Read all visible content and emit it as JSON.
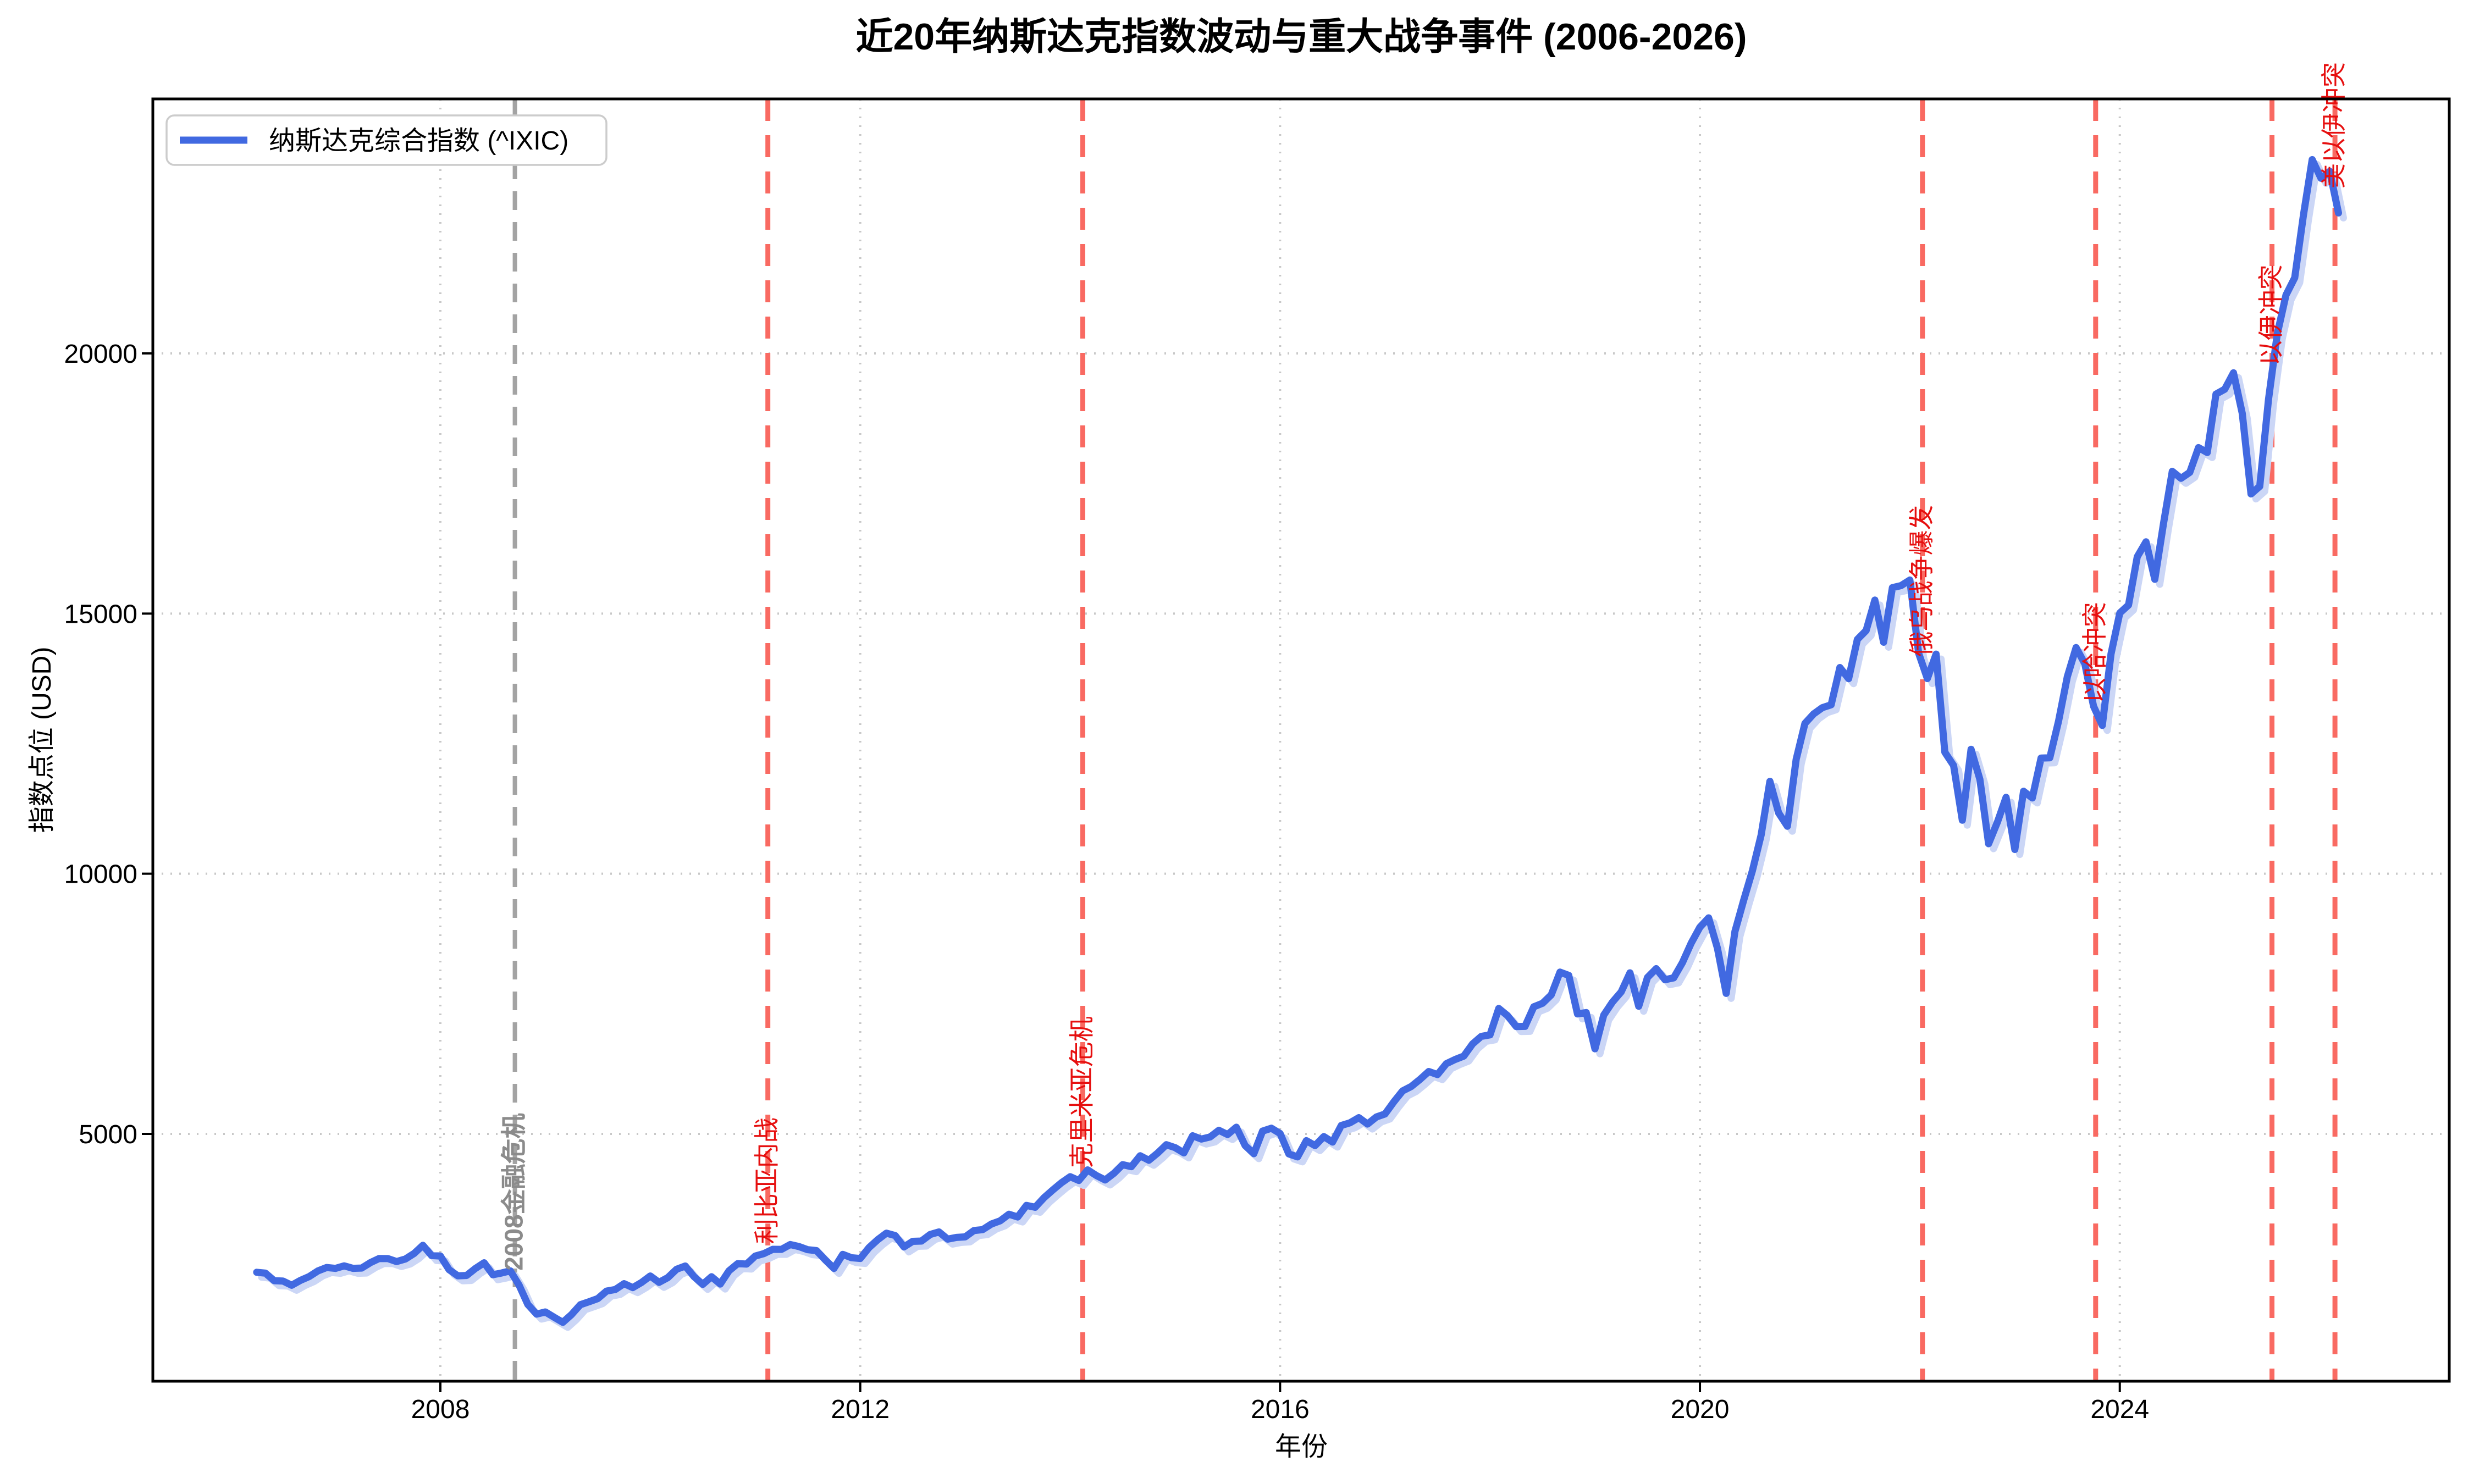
{
  "title": "近20年纳斯达克指数波动与重大战争事件 (2006-2026)",
  "legend": {
    "series_label": "纳斯达克综合指数 (^IXIC)"
  },
  "axes": {
    "x_label": "年份",
    "y_label": "指数点位 (USD)",
    "x_ticks": [
      2008,
      2012,
      2016,
      2020,
      2024
    ],
    "y_ticks": [
      5000,
      10000,
      15000,
      20000
    ]
  },
  "colors": {
    "line": "#4169E1",
    "line_shadow": "#CBD6F6",
    "grid": "#C8C8C8",
    "spine": "#000000",
    "war_line": "#F96A62",
    "war_text": "#E60F0F",
    "crisis_line": "#A3A3A3",
    "crisis_text": "#8B8B8B"
  },
  "chart_data": {
    "type": "line",
    "title": "近20年纳斯达克指数波动与重大战争事件 (2006-2026)",
    "xlabel": "年份",
    "ylabel": "指数点位 (USD)",
    "xlim": [
      2005.26,
      2027.14
    ],
    "ylim": [
      250,
      24890
    ],
    "x_ticks": [
      2008,
      2012,
      2016,
      2020,
      2024
    ],
    "y_ticks": [
      5000,
      10000,
      15000,
      20000
    ],
    "grid": true,
    "legend_position": "upper left",
    "series": [
      {
        "name": "纳斯达克综合指数 (^IXIC)",
        "start": "2006-03",
        "frequency": "monthly",
        "values": [
          2340,
          2323,
          2179,
          2172,
          2091,
          2184,
          2258,
          2367,
          2432,
          2415,
          2464,
          2416,
          2422,
          2525,
          2605,
          2603,
          2546,
          2596,
          2702,
          2859,
          2661,
          2652,
          2390,
          2271,
          2279,
          2413,
          2523,
          2293,
          2326,
          2368,
          2092,
          1721,
          1536,
          1577,
          1476,
          1378,
          1529,
          1717,
          1774,
          1835,
          1979,
          2009,
          2122,
          2045,
          2145,
          2269,
          2147,
          2238,
          2398,
          2461,
          2257,
          2109,
          2255,
          2114,
          2369,
          2507,
          2498,
          2653,
          2700,
          2782,
          2781,
          2874,
          2835,
          2774,
          2756,
          2579,
          2415,
          2684,
          2620,
          2605,
          2814,
          2967,
          3092,
          3046,
          2827,
          2935,
          2940,
          3067,
          3116,
          2977,
          3010,
          3020,
          3142,
          3160,
          3268,
          3329,
          3456,
          3403,
          3626,
          3590,
          3771,
          3920,
          4060,
          4177,
          4104,
          4308,
          4199,
          4115,
          4243,
          4408,
          4370,
          4580,
          4493,
          4631,
          4792,
          4736,
          4635,
          4964,
          4901,
          4941,
          5070,
          4987,
          5128,
          4777,
          4620,
          5054,
          5109,
          5007,
          4614,
          4558,
          4870,
          4775,
          4948,
          4843,
          5162,
          5213,
          5312,
          5189,
          5324,
          5383,
          5615,
          5825,
          5912,
          6048,
          6199,
          6140,
          6348,
          6429,
          6496,
          6728,
          6874,
          6903,
          7411,
          7273,
          7063,
          7066,
          7442,
          7510,
          7672,
          8109,
          8046,
          7306,
          7331,
          6635,
          7282,
          7533,
          7729,
          8095,
          7453,
          8006,
          8175,
          7963,
          7999,
          8292,
          8665,
          8973,
          9151,
          8567,
          7700,
          8890,
          9490,
          10059,
          10745,
          11775,
          11168,
          10912,
          12199,
          12888,
          13071,
          13192,
          13247,
          13963,
          13749,
          14504,
          14673,
          15259,
          14449,
          15498,
          15538,
          15645,
          14240,
          13751,
          14221,
          12335,
          12081,
          11029,
          12391,
          11816,
          10576,
          10988,
          11468,
          10466,
          11585,
          11456,
          12222,
          12227,
          12935,
          13788,
          14346,
          14035,
          13219,
          12851,
          14226,
          15011,
          15164,
          16092,
          16379,
          15658,
          16735,
          17733,
          17599,
          17714,
          18189,
          18095,
          19218,
          19311,
          19627,
          18847,
          17299,
          17446,
          19114,
          20370,
          21122,
          21455,
          22660,
          23725,
          23366,
          23500,
          22700
        ]
      }
    ],
    "event_lines": [
      {
        "label": "2008金融危机",
        "date": 2008.71,
        "type": "crisis"
      },
      {
        "label": "利比亚内战",
        "date": 2011.12,
        "type": "war"
      },
      {
        "label": "克里米亚危机",
        "date": 2014.12,
        "type": "war"
      },
      {
        "label": "俄乌战争爆发",
        "date": 2022.12,
        "type": "war"
      },
      {
        "label": "以哈冲突",
        "date": 2023.77,
        "type": "war"
      },
      {
        "label": "以伊冲突",
        "date": 2025.45,
        "type": "war"
      },
      {
        "label": "美以伊冲突",
        "date": 2026.05,
        "type": "war"
      }
    ]
  }
}
